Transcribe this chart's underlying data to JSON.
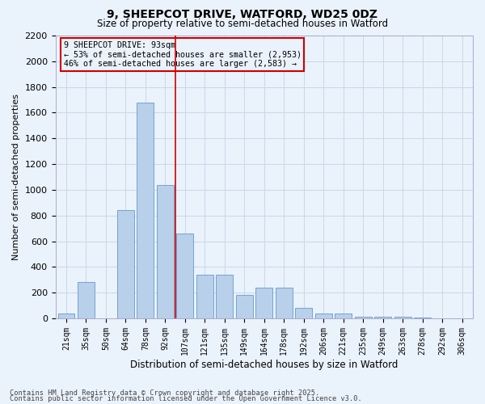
{
  "title1": "9, SHEEPCOT DRIVE, WATFORD, WD25 0DZ",
  "title2": "Size of property relative to semi-detached houses in Watford",
  "xlabel": "Distribution of semi-detached houses by size in Watford",
  "ylabel": "Number of semi-detached properties",
  "bar_labels": [
    "21sqm",
    "35sqm",
    "50sqm",
    "64sqm",
    "78sqm",
    "92sqm",
    "107sqm",
    "121sqm",
    "135sqm",
    "149sqm",
    "164sqm",
    "178sqm",
    "192sqm",
    "206sqm",
    "221sqm",
    "235sqm",
    "249sqm",
    "263sqm",
    "278sqm",
    "292sqm",
    "306sqm"
  ],
  "bar_values": [
    40,
    280,
    0,
    840,
    1680,
    1040,
    660,
    340,
    340,
    180,
    240,
    240,
    80,
    40,
    40,
    15,
    15,
    10,
    5,
    1,
    1
  ],
  "bar_color": "#b8d0ea",
  "bar_edge_color": "#6699cc",
  "vline_color": "#cc0000",
  "vline_x": 5.5,
  "annotation_title": "9 SHEEPCOT DRIVE: 93sqm",
  "annotation_line1": "← 53% of semi-detached houses are smaller (2,953)",
  "annotation_line2": "46% of semi-detached houses are larger (2,583) →",
  "annotation_box_color": "#cc0000",
  "ylim": [
    0,
    2200
  ],
  "yticks": [
    0,
    200,
    400,
    600,
    800,
    1000,
    1200,
    1400,
    1600,
    1800,
    2000,
    2200
  ],
  "grid_color": "#c8d8e8",
  "bg_color": "#eaf2fb",
  "footer1": "Contains HM Land Registry data © Crown copyright and database right 2025.",
  "footer2": "Contains public sector information licensed under the Open Government Licence v3.0."
}
